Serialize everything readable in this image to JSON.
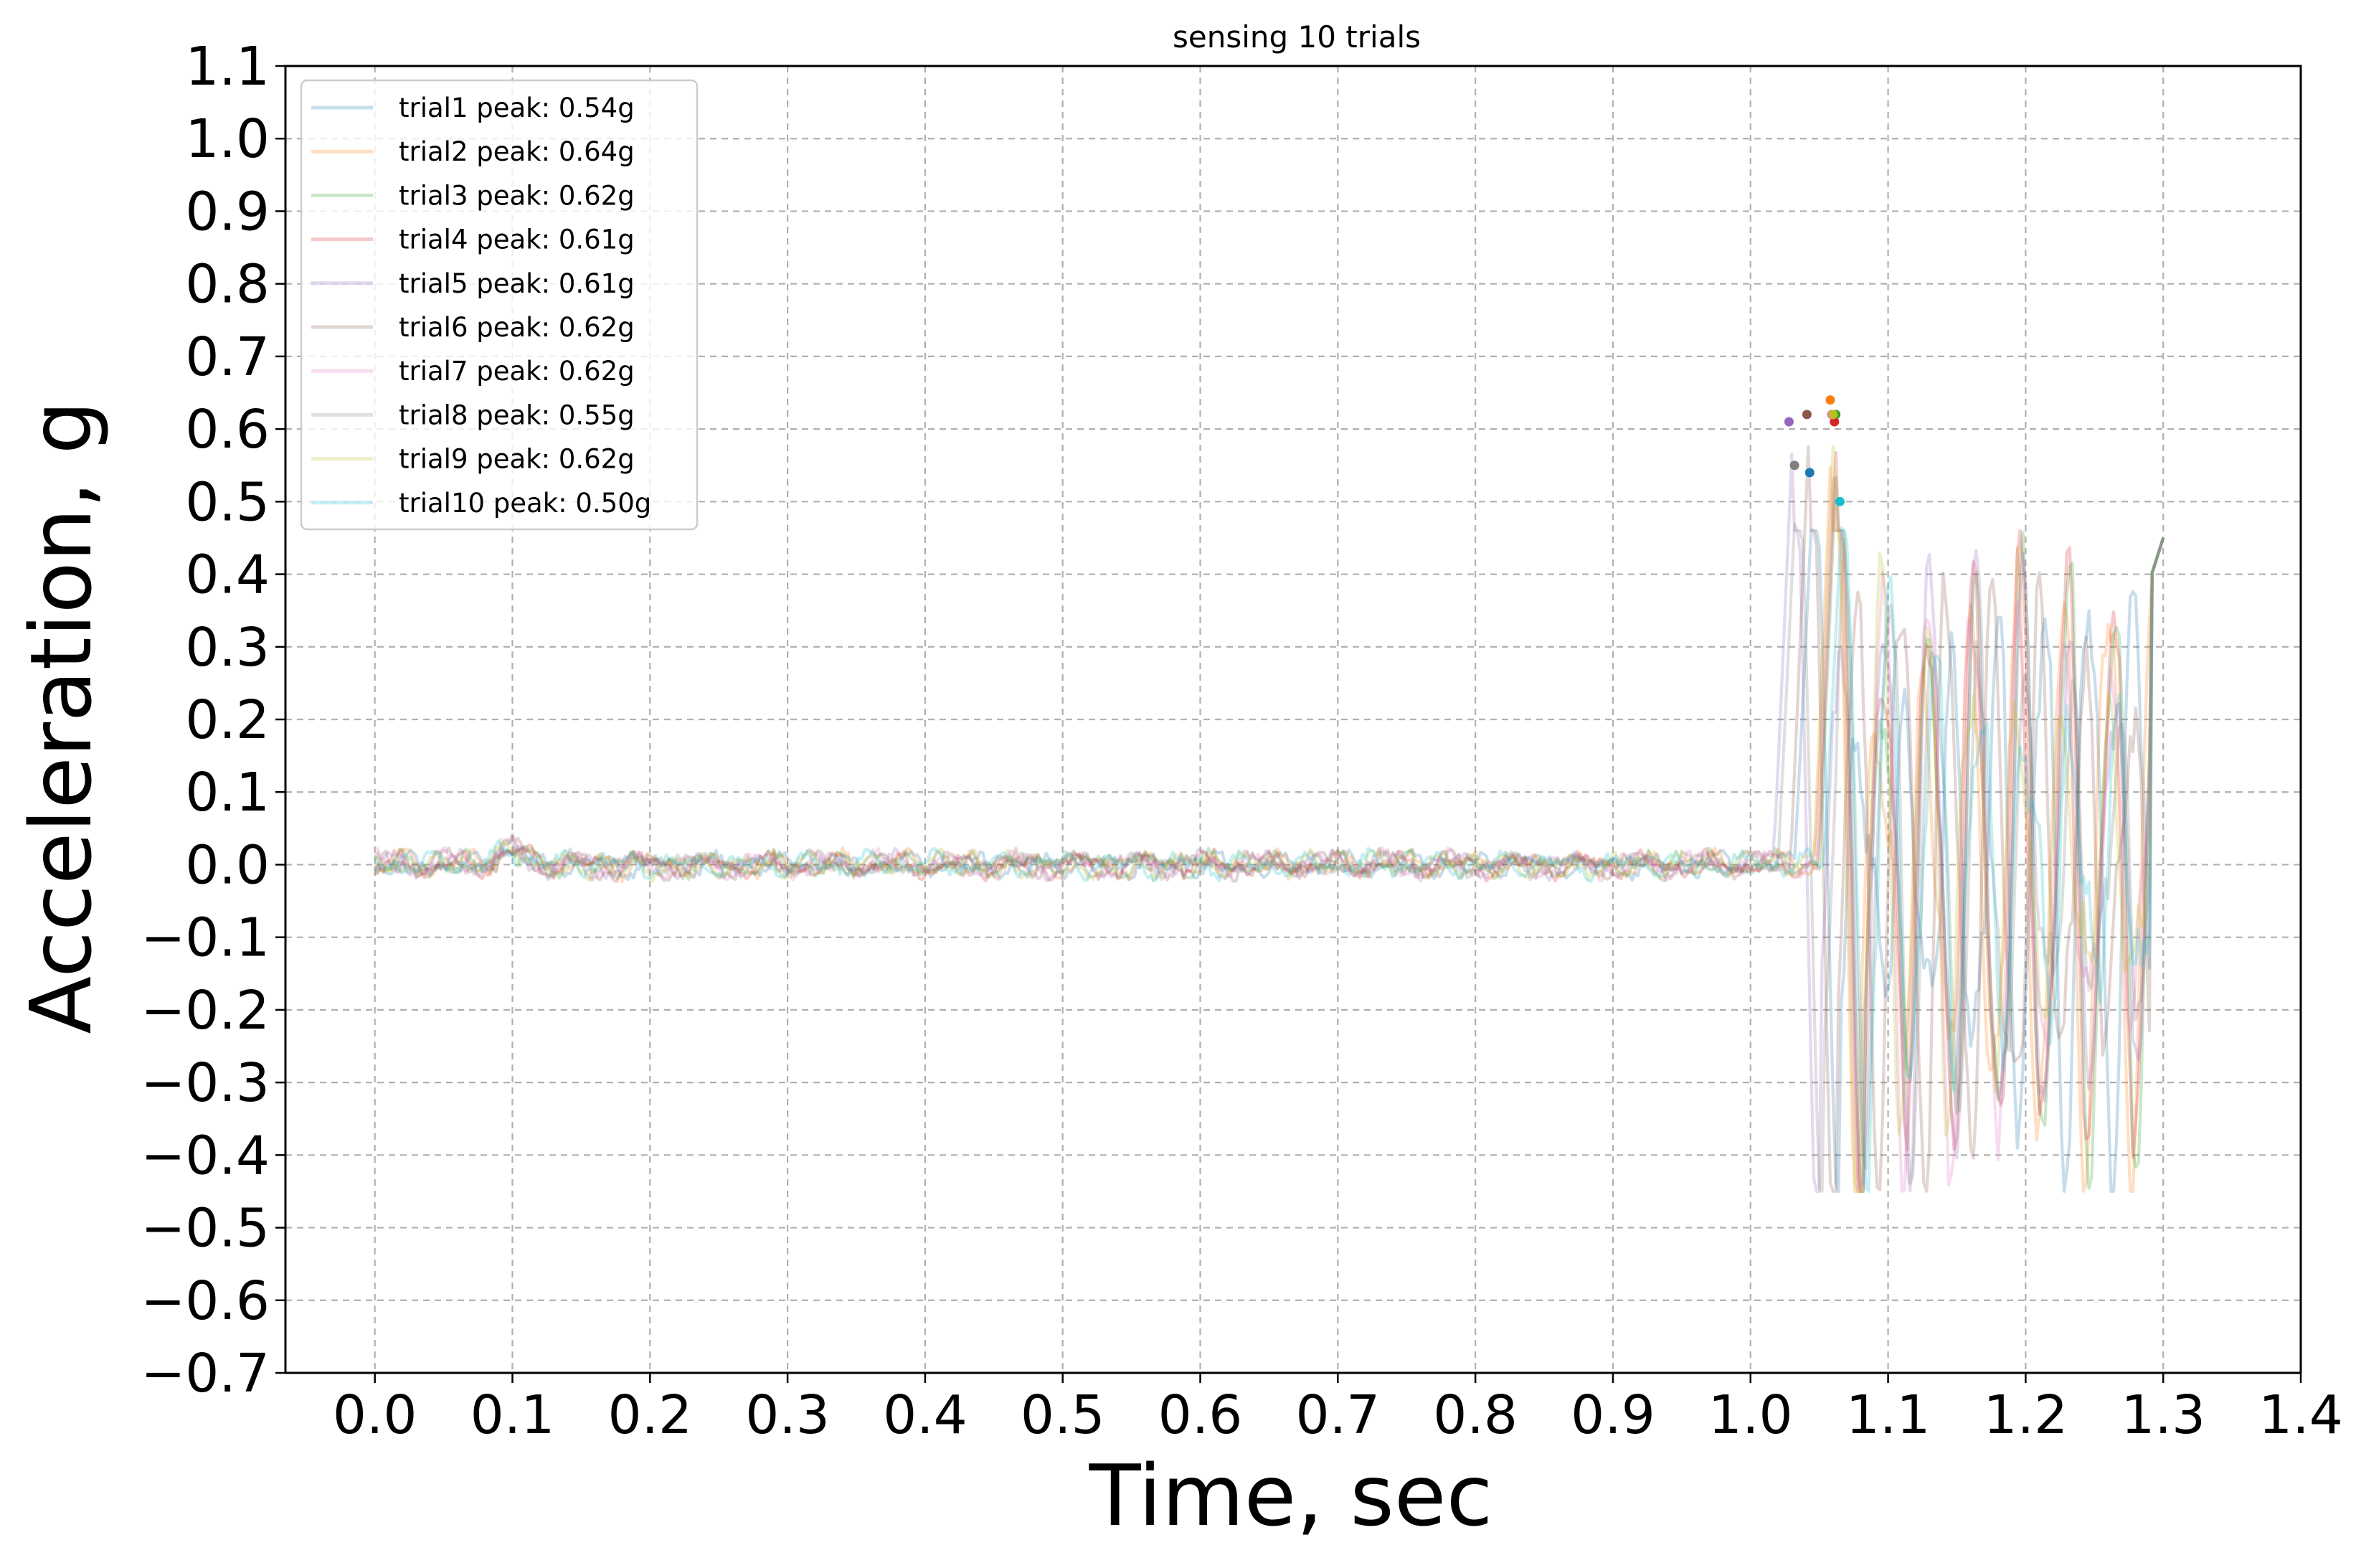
{
  "chart_data": {
    "type": "line",
    "title": "sensing 10 trials",
    "xlabel": "Time, sec",
    "ylabel": "Acceleration, g",
    "xlim": [
      -0.065,
      1.4
    ],
    "ylim": [
      -0.7,
      1.1
    ],
    "xticks": [
      "0.0",
      "0.1",
      "0.2",
      "0.3",
      "0.4",
      "0.5",
      "0.6",
      "0.7",
      "0.8",
      "0.9",
      "1.0",
      "1.1",
      "1.2",
      "1.3",
      "1.4"
    ],
    "yticks": [
      "1.1",
      "1.0",
      "0.9",
      "0.8",
      "0.7",
      "0.6",
      "0.5",
      "0.4",
      "0.3",
      "0.2",
      "0.1",
      "0.0",
      "−0.1",
      "−0.2",
      "−0.3",
      "−0.4",
      "−0.5",
      "−0.6",
      "−0.7"
    ],
    "grid": true,
    "grid_style": "dashed",
    "legend_position": "upper-left",
    "series_opacity": 0.25,
    "series": [
      {
        "name": "trial1 peak: 0.54g",
        "color": "#1f77b4",
        "onset": 1.046,
        "peak_x": 1.043,
        "peak_y": 0.54
      },
      {
        "name": "trial2 peak: 0.64g",
        "color": "#ff7f0e",
        "onset": 1.06,
        "peak_x": 1.058,
        "peak_y": 0.64
      },
      {
        "name": "trial3 peak: 0.62g",
        "color": "#2ca02c",
        "onset": 1.064,
        "peak_x": 1.062,
        "peak_y": 0.62
      },
      {
        "name": "trial4 peak: 0.61g",
        "color": "#d62728",
        "onset": 1.063,
        "peak_x": 1.061,
        "peak_y": 0.61
      },
      {
        "name": "trial5 peak: 0.61g",
        "color": "#9467bd",
        "onset": 1.031,
        "peak_x": 1.028,
        "peak_y": 0.61
      },
      {
        "name": "trial6 peak: 0.62g",
        "color": "#8c564b",
        "onset": 1.043,
        "peak_x": 1.041,
        "peak_y": 0.62
      },
      {
        "name": "trial7 peak: 0.62g",
        "color": "#e377c2",
        "onset": 1.062,
        "peak_x": 1.059,
        "peak_y": 0.62
      },
      {
        "name": "trial8 peak: 0.55g",
        "color": "#7f7f7f",
        "onset": 1.034,
        "peak_x": 1.032,
        "peak_y": 0.55
      },
      {
        "name": "trial9 peak: 0.62g",
        "color": "#bcbd22",
        "onset": 1.061,
        "peak_x": 1.06,
        "peak_y": 0.62
      },
      {
        "name": "trial10 peak: 0.50g",
        "color": "#17becf",
        "onset": 1.067,
        "peak_x": 1.065,
        "peak_y": 0.5
      }
    ]
  }
}
